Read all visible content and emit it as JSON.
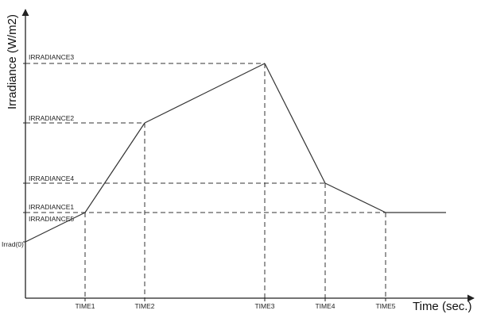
{
  "chart_data": {
    "type": "line",
    "title": "",
    "xlabel": "Time (sec.)",
    "ylabel": "Irradiance (W/m2)",
    "x_labels": [
      "TIME1",
      "TIME2",
      "TIME3",
      "TIME4",
      "TIME5"
    ],
    "y_labels": [
      {
        "key": "irrad0",
        "text": "Irrad(0)"
      },
      {
        "key": "irradiance1",
        "text": "IRRADIANCE1"
      },
      {
        "key": "irradiance5",
        "text": "IRRADIANCE5"
      },
      {
        "key": "irradiance4",
        "text": "IRRADIANCE4"
      },
      {
        "key": "irradiance2",
        "text": "IRRADIANCE2"
      },
      {
        "key": "irradiance3",
        "text": "IRRADIANCE3"
      }
    ],
    "series": [
      {
        "points": [
          {
            "x": "start",
            "y": "Irrad(0)"
          },
          {
            "x": "TIME1",
            "y": "IRRADIANCE1"
          },
          {
            "x": "TIME2",
            "y": "IRRADIANCE2"
          },
          {
            "x": "TIME3",
            "y": "IRRADIANCE3"
          },
          {
            "x": "TIME4",
            "y": "IRRADIANCE4"
          },
          {
            "x": "TIME5",
            "y": "IRRADIANCE5"
          },
          {
            "x": "end",
            "y": "IRRADIANCE5"
          }
        ]
      }
    ],
    "grid": false,
    "legend": "none",
    "guide_lines": "dashed",
    "line_color": "#333333"
  }
}
